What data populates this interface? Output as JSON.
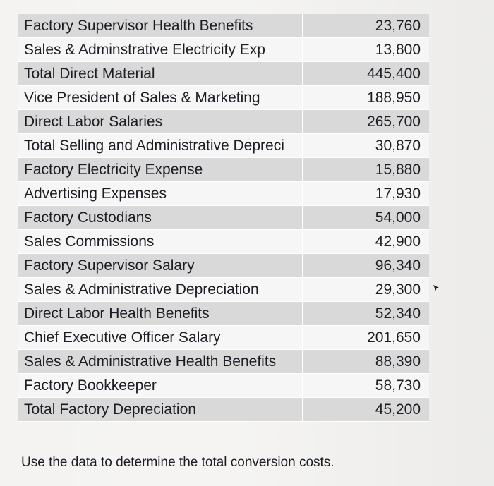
{
  "table": {
    "rows": [
      {
        "label": "Factory Supervisor Health Benefits",
        "value": "23,760"
      },
      {
        "label": "Sales & Adminstrative Electricity Exp",
        "value": "13,800"
      },
      {
        "label": "Total Direct Material",
        "value": "445,400"
      },
      {
        "label": "Vice President of Sales & Marketing",
        "value": "188,950"
      },
      {
        "label": "Direct Labor Salaries",
        "value": "265,700"
      },
      {
        "label": "Total Selling and Administrative Depreci",
        "value": "30,870"
      },
      {
        "label": "Factory Electricity Expense",
        "value": "15,880"
      },
      {
        "label": "Advertising Expenses",
        "value": "17,930"
      },
      {
        "label": "Factory Custodians",
        "value": "54,000"
      },
      {
        "label": "Sales Commissions",
        "value": "42,900"
      },
      {
        "label": "Factory Supervisor Salary",
        "value": "96,340"
      },
      {
        "label": "Sales & Administrative Depreciation",
        "value": "29,300"
      },
      {
        "label": "Direct Labor Health Benefits",
        "value": "52,340"
      },
      {
        "label": "Chief Executive Officer Salary",
        "value": "201,650"
      },
      {
        "label": "Sales & Administrative Health Benefits",
        "value": "88,390"
      },
      {
        "label": "Factory Bookkeeper",
        "value": "58,730"
      },
      {
        "label": "Total Factory Depreciation",
        "value": "45,200"
      }
    ]
  },
  "instruction": "Use the data to determine the total conversion costs.",
  "icons": {
    "cursor": "mouse-pointer-icon"
  }
}
